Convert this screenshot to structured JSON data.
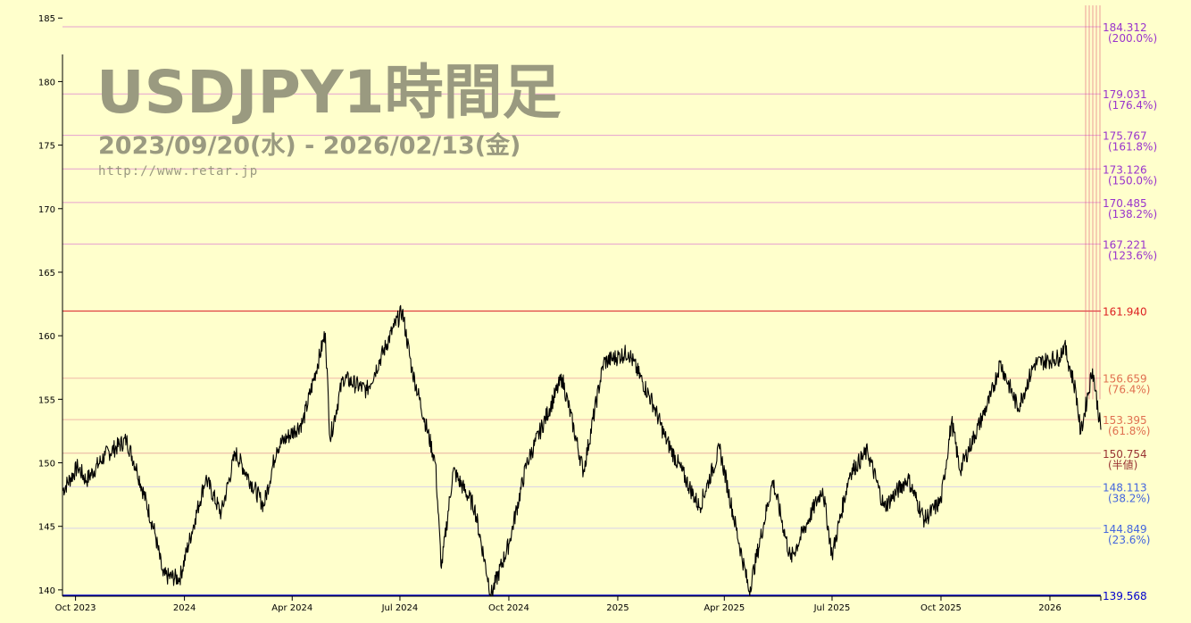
{
  "watermark": {
    "title": "USDJPY1時間足",
    "period": "2023/09/20(水) - 2026/02/13(金)",
    "url": "http://www.retar.jp"
  },
  "colors": {
    "background": "#ffffcc",
    "price_line": "#000000",
    "max_line": "#e04040",
    "min_line": "#0000cc",
    "ext_lines": "#e6a0d0",
    "ext_labels": "#9933cc",
    "retr_labels_upper": "#e07050",
    "retr_labels_mid": "#993333",
    "retr_labels_lower": "#4466dd",
    "grid": "#e0e0c0",
    "vertical_markers": "#e05070"
  },
  "chart_data": {
    "type": "line",
    "title": "USDJPY1時間足",
    "xlabel": "",
    "ylabel": "",
    "x_range": [
      "2023-09-20",
      "2026-02-13"
    ],
    "ylim": [
      139.5,
      186
    ],
    "y_ticks": [
      140,
      145,
      150,
      155,
      160,
      165,
      170,
      175,
      180,
      185
    ],
    "x_ticks": [
      {
        "date": "2023-10-01",
        "label": "Oct 2023"
      },
      {
        "date": "2024-01-01",
        "label": "2024"
      },
      {
        "date": "2024-04-01",
        "label": "Apr 2024"
      },
      {
        "date": "2024-07-01",
        "label": "Jul 2024"
      },
      {
        "date": "2024-10-01",
        "label": "Oct 2024"
      },
      {
        "date": "2025-01-01",
        "label": "2025"
      },
      {
        "date": "2025-04-01",
        "label": "Apr 2025"
      },
      {
        "date": "2025-07-01",
        "label": "Jul 2025"
      },
      {
        "date": "2025-10-01",
        "label": "Oct 2025"
      },
      {
        "date": "2026-01-01",
        "label": "2026"
      }
    ],
    "series": [
      {
        "points": [
          [
            "2023-09-20",
            147.8
          ],
          [
            "2023-10-03",
            149.7
          ],
          [
            "2023-10-10",
            148.6
          ],
          [
            "2023-10-26",
            150.6
          ],
          [
            "2023-11-13",
            151.8
          ],
          [
            "2023-11-22",
            149.4
          ],
          [
            "2023-12-07",
            144.5
          ],
          [
            "2023-12-14",
            141.1
          ],
          [
            "2023-12-28",
            140.9
          ],
          [
            "2024-01-10",
            145.6
          ],
          [
            "2024-01-19",
            148.8
          ],
          [
            "2024-02-01",
            146.0
          ],
          [
            "2024-02-13",
            150.8
          ],
          [
            "2024-03-08",
            146.6
          ],
          [
            "2024-03-19",
            151.2
          ],
          [
            "2024-04-10",
            153.2
          ],
          [
            "2024-04-29",
            160.2
          ],
          [
            "2024-05-03",
            151.9
          ],
          [
            "2024-05-14",
            156.7
          ],
          [
            "2024-06-03",
            155.7
          ],
          [
            "2024-06-26",
            160.7
          ],
          [
            "2024-07-03",
            161.95
          ],
          [
            "2024-07-11",
            157.4
          ],
          [
            "2024-07-31",
            150.0
          ],
          [
            "2024-08-05",
            141.7
          ],
          [
            "2024-08-15",
            149.4
          ],
          [
            "2024-09-02",
            146.5
          ],
          [
            "2024-09-16",
            139.6
          ],
          [
            "2024-10-01",
            143.6
          ],
          [
            "2024-10-16",
            149.9
          ],
          [
            "2024-11-15",
            156.7
          ],
          [
            "2024-12-03",
            149.3
          ],
          [
            "2024-12-20",
            157.9
          ],
          [
            "2025-01-10",
            158.7
          ],
          [
            "2025-01-31",
            154.6
          ],
          [
            "2025-02-10",
            152.0
          ],
          [
            "2025-03-11",
            146.5
          ],
          [
            "2025-03-28",
            151.1
          ],
          [
            "2025-04-22",
            139.9
          ],
          [
            "2025-05-12",
            148.6
          ],
          [
            "2025-05-27",
            142.4
          ],
          [
            "2025-06-23",
            148.0
          ],
          [
            "2025-07-01",
            142.7
          ],
          [
            "2025-07-16",
            149.2
          ],
          [
            "2025-07-31",
            150.9
          ],
          [
            "2025-08-14",
            146.5
          ],
          [
            "2025-09-03",
            148.8
          ],
          [
            "2025-09-17",
            145.5
          ],
          [
            "2025-10-01",
            147.0
          ],
          [
            "2025-10-10",
            153.3
          ],
          [
            "2025-10-17",
            149.4
          ],
          [
            "2025-11-12",
            155.2
          ],
          [
            "2025-11-20",
            157.9
          ],
          [
            "2025-12-05",
            154.3
          ],
          [
            "2025-12-19",
            157.8
          ],
          [
            "2026-01-09",
            158.3
          ],
          [
            "2026-01-13",
            159.3
          ],
          [
            "2026-01-23",
            155.6
          ],
          [
            "2026-01-27",
            152.3
          ],
          [
            "2026-02-06",
            157.4
          ],
          [
            "2026-02-13",
            152.6
          ]
        ]
      }
    ],
    "levels": [
      {
        "value": 184.312,
        "label": "184.312",
        "pct": "(200.0%)",
        "kind": "ext"
      },
      {
        "value": 179.031,
        "label": "179.031",
        "pct": "(176.4%)",
        "kind": "ext"
      },
      {
        "value": 175.767,
        "label": "175.767",
        "pct": "(161.8%)",
        "kind": "ext"
      },
      {
        "value": 173.126,
        "label": "173.126",
        "pct": "(150.0%)",
        "kind": "ext"
      },
      {
        "value": 170.485,
        "label": "170.485",
        "pct": "(138.2%)",
        "kind": "ext"
      },
      {
        "value": 167.221,
        "label": "167.221",
        "pct": "(123.6%)",
        "kind": "ext"
      },
      {
        "value": 161.94,
        "label": "161.940",
        "pct": "",
        "kind": "max"
      },
      {
        "value": 156.659,
        "label": "156.659",
        "pct": "(76.4%)",
        "kind": "upper"
      },
      {
        "value": 153.395,
        "label": "153.395",
        "pct": "(61.8%)",
        "kind": "upper"
      },
      {
        "value": 150.754,
        "label": "150.754",
        "pct": "(半値)",
        "kind": "mid"
      },
      {
        "value": 148.113,
        "label": "148.113",
        "pct": "(38.2%)",
        "kind": "lower"
      },
      {
        "value": 144.849,
        "label": "144.849",
        "pct": "(23.6%)",
        "kind": "lower"
      },
      {
        "value": 139.568,
        "label": "139.568",
        "pct": "",
        "kind": "min"
      }
    ]
  }
}
